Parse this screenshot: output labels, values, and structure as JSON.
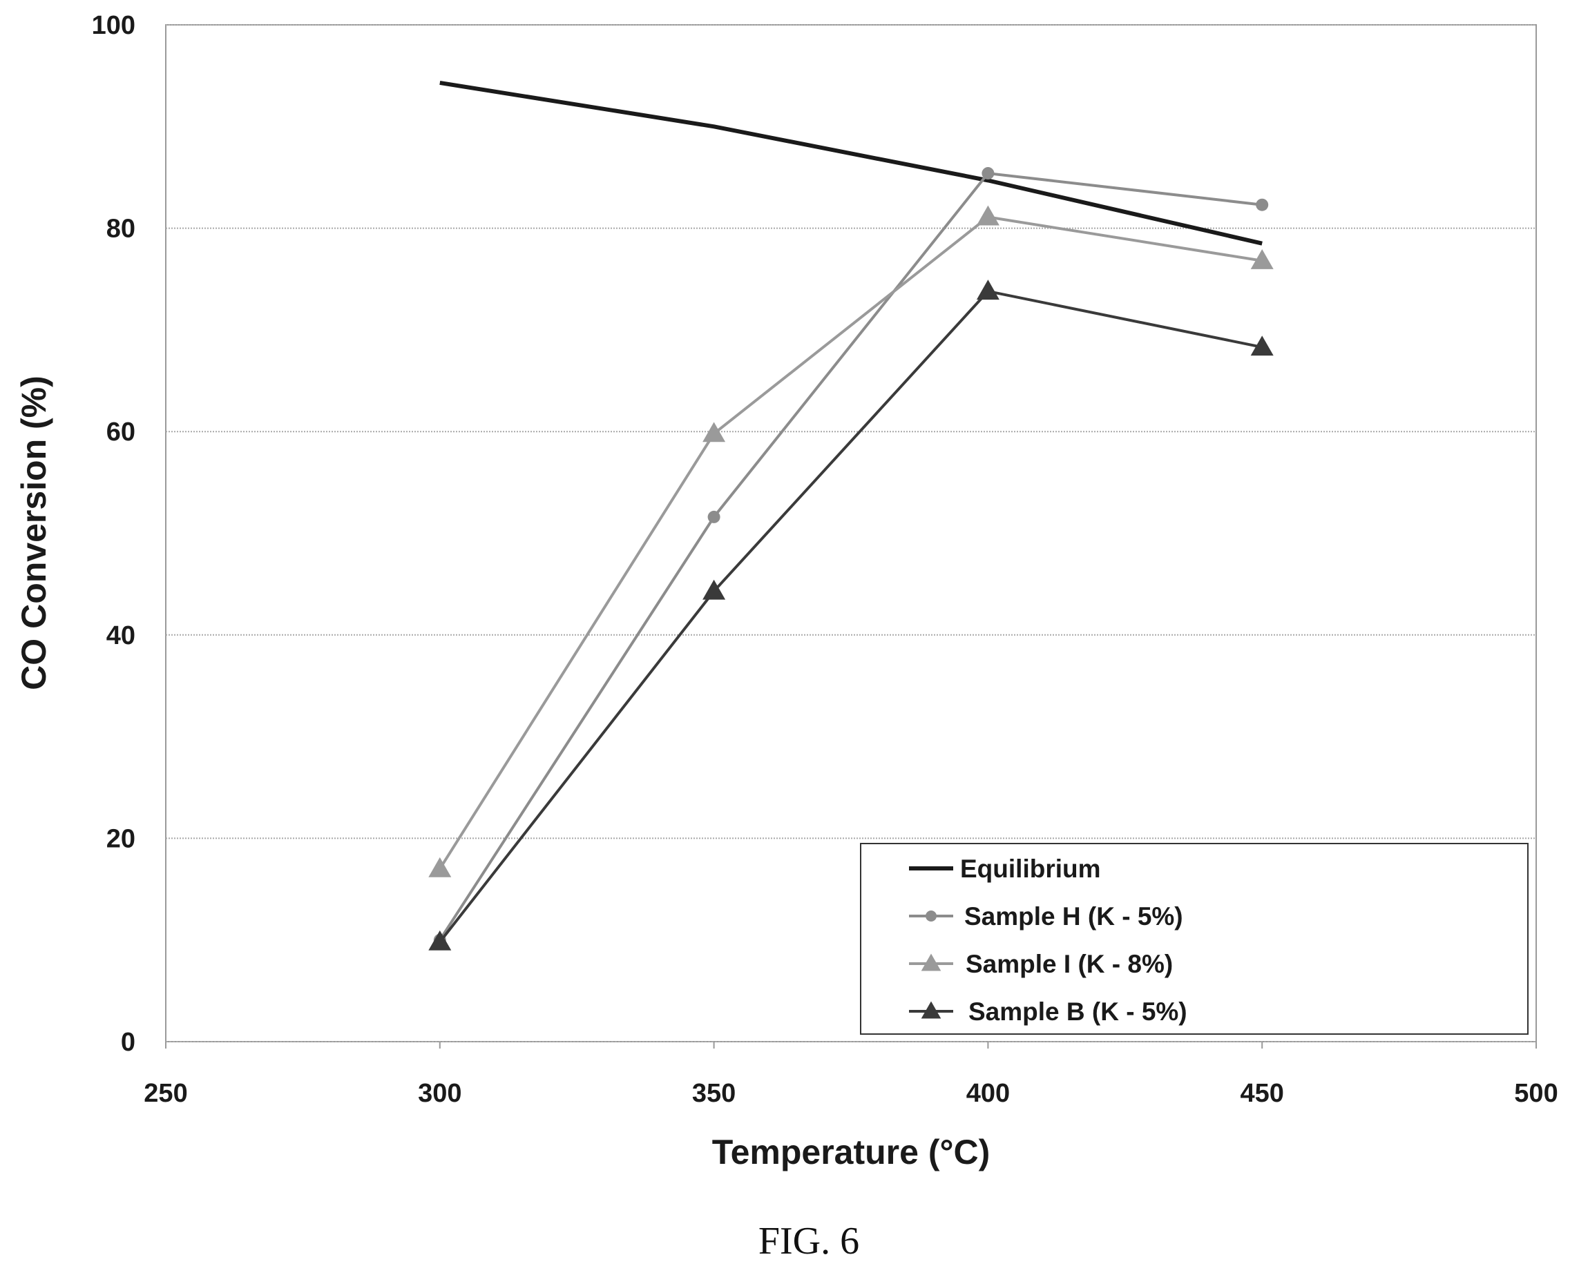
{
  "chart_data": {
    "type": "line",
    "xlabel": "Temperature (°C)",
    "ylabel": "CO Conversion (%)",
    "xlim": [
      250,
      500
    ],
    "ylim": [
      0,
      100
    ],
    "xticks": [
      "250",
      "300",
      "350",
      "400",
      "450",
      "500"
    ],
    "yticks": [
      "0",
      "20",
      "40",
      "60",
      "80",
      "100"
    ],
    "grid": "horizontal",
    "legend_position": "bottom-right",
    "series": [
      {
        "name": "Equilibrium",
        "x": [
          300,
          350,
          400,
          450
        ],
        "y": [
          94.3,
          90.0,
          84.7,
          78.5
        ],
        "color": "#1a1a1a",
        "marker": "none"
      },
      {
        "name": "Sample H (K - 5%)",
        "x": [
          300,
          350,
          400,
          450
        ],
        "y": [
          10.0,
          51.6,
          85.4,
          82.3
        ],
        "color": "#8c8c8c",
        "marker": "circle"
      },
      {
        "name": "Sample I (K - 8%)",
        "x": [
          300,
          350,
          400,
          450
        ],
        "y": [
          17.0,
          59.8,
          81.1,
          76.8
        ],
        "color": "#9a9a9a",
        "marker": "triangle"
      },
      {
        "name": "Sample B (K - 5%)",
        "x": [
          300,
          350,
          400,
          450
        ],
        "y": [
          9.8,
          44.3,
          73.8,
          68.3
        ],
        "color": "#3a3a3a",
        "marker": "triangle"
      }
    ]
  },
  "caption": "FIG. 6"
}
